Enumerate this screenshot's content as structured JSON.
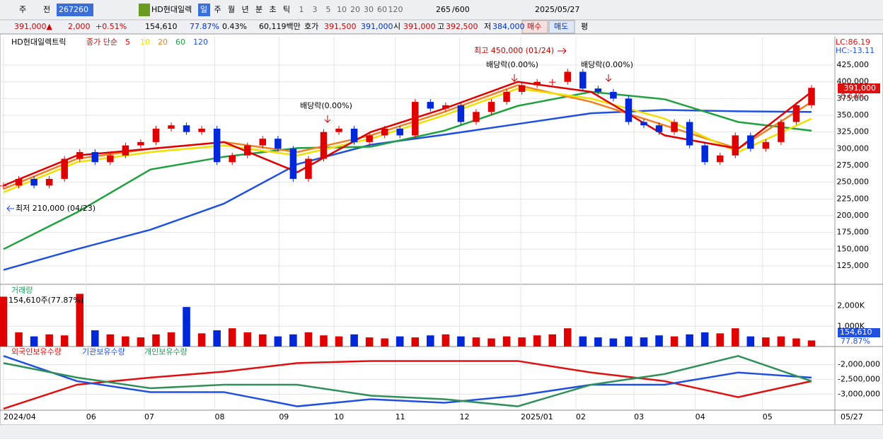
{
  "toolbar": {
    "period": "주",
    "prev": "전",
    "code": "267260",
    "name": "HD현대일렉",
    "intervals": [
      "일",
      "주",
      "월",
      "년",
      "분",
      "초",
      "틱"
    ],
    "counts": [
      "1",
      "3",
      "5",
      "10",
      "20",
      "30",
      "60",
      "120"
    ],
    "bars": "265",
    "max": "/600",
    "date": "2025/05/27"
  },
  "quote": [
    {
      "text": "391,000▲",
      "color": "#d00000"
    },
    {
      "text": "2,000",
      "color": "#d00000"
    },
    {
      "text": "+0.51%",
      "color": "#d00000"
    },
    {
      "text": "154,610",
      "color": "#000000"
    },
    {
      "text": "77.87%",
      "color": "#0030c0"
    },
    {
      "text": "0.43%",
      "color": "#000000"
    },
    {
      "text": "60,119백만",
      "color": "#000000"
    },
    {
      "text": "호가",
      "color": "#000000"
    },
    {
      "text": "391,500",
      "color": "#d00000"
    },
    {
      "text": "391,000",
      "color": "#0030c0"
    },
    {
      "text": "시",
      "color": "#000000"
    },
    {
      "text": "391,000",
      "color": "#d00000"
    },
    {
      "text": "고",
      "color": "#000000"
    },
    {
      "text": "392,500",
      "color": "#d00000"
    },
    {
      "text": "저",
      "color": "#000000"
    },
    {
      "text": "384,000",
      "color": "#0030c0"
    },
    {
      "text": "매수",
      "color": "#d00000"
    },
    {
      "text": "매도",
      "color": "#0030c0"
    },
    {
      "text": "평",
      "color": "#000000"
    }
  ],
  "chart_data": [
    {
      "type": "candlestick",
      "title": "HD현대일렉트릭",
      "legend": "종가 단순",
      "color_up": "#e00000",
      "color_down": "#0028d8",
      "values": [
        245000,
        255000,
        245000,
        255000,
        285000,
        295000,
        280000,
        290000,
        305000,
        310000,
        330000,
        335000,
        325000,
        330000,
        280000,
        290000,
        305000,
        315000,
        300000,
        255000,
        285000,
        325000,
        330000,
        310000,
        320000,
        330000,
        320000,
        370000,
        360000,
        365000,
        340000,
        355000,
        370000,
        385000,
        395000,
        400000,
        400000,
        415000,
        390000,
        385000,
        375000,
        340000,
        335000,
        325000,
        340000,
        305000,
        280000,
        290000,
        320000,
        300000,
        310000,
        340000,
        365000,
        391000
      ],
      "series": [
        {
          "name": "5",
          "color": "#e00000",
          "values": [
            245000,
            290000,
            300000,
            310000,
            265000,
            325000,
            360000,
            400000,
            385000,
            320000,
            300000,
            385000
          ]
        },
        {
          "name": "10",
          "color": "#f0e000",
          "values": [
            235000,
            280000,
            295000,
            305000,
            290000,
            315000,
            350000,
            390000,
            375000,
            345000,
            295000,
            345000
          ]
        },
        {
          "name": "20",
          "color": "#f08020",
          "values": [
            240000,
            285000,
            300000,
            310000,
            295000,
            320000,
            355000,
            395000,
            370000,
            335000,
            300000,
            370000
          ]
        },
        {
          "name": "60",
          "color": "#20a040",
          "values": [
            150000,
            205000,
            269000,
            288000,
            301000,
            303000,
            327000,
            364000,
            385000,
            374000,
            340000,
            327000
          ]
        },
        {
          "name": "120",
          "color": "#2050e0",
          "values": [
            119000,
            150000,
            179000,
            218000,
            277000,
            306000,
            321000,
            337000,
            353000,
            358000,
            356000,
            355000
          ]
        }
      ],
      "ylim": [
        97500,
        467300
      ],
      "yticks": [
        {
          "value": 125000,
          "label": "125,000"
        },
        {
          "value": 150000,
          "label": "150,000"
        },
        {
          "value": 175000,
          "label": "175,000"
        },
        {
          "value": 200000,
          "label": "200,000"
        },
        {
          "value": 225000,
          "label": "225,000"
        },
        {
          "value": 250000,
          "label": "250,000"
        },
        {
          "value": 275000,
          "label": "275,000"
        },
        {
          "value": 300000,
          "label": "300,000"
        },
        {
          "value": 325000,
          "label": "325,000"
        },
        {
          "value": 350000,
          "label": "350,000"
        },
        {
          "value": 375000,
          "label": "375,000"
        },
        {
          "value": 400000,
          "label": "400,000"
        },
        {
          "value": 425000,
          "label": "425,000"
        }
      ],
      "xlim": [
        0,
        264
      ],
      "xticks": [
        {
          "value": 0,
          "label": "2024/04"
        },
        {
          "value": 27,
          "label": "06"
        },
        {
          "value": 46,
          "label": "07"
        },
        {
          "value": 69,
          "label": "08"
        },
        {
          "value": 90,
          "label": "09"
        },
        {
          "value": 108,
          "label": "10"
        },
        {
          "value": 128,
          "label": "11"
        },
        {
          "value": 149,
          "label": "12"
        },
        {
          "value": 169,
          "label": "2025/01"
        },
        {
          "value": 187,
          "label": "02"
        },
        {
          "value": 206,
          "label": "03"
        },
        {
          "value": 226,
          "label": "04"
        },
        {
          "value": 248,
          "label": "05"
        }
      ],
      "x_end_label": "05/27",
      "annotations": [
        "최고 450,000 (01/24)",
        "최저 210,000 (04/23)",
        "배당락(0.00%)",
        "배당락(0.00%)",
        "배당락(0.00%)"
      ],
      "last_price_label": "391,000",
      "last_change_label": "0.64%",
      "lc": "LC:86.19",
      "hc": "HC:-13.11",
      "grid": true
    },
    {
      "type": "bar",
      "title": "거래량",
      "subtitle": "154,610주(77.87%)",
      "values": [
        2460,
        700,
        500,
        600,
        550,
        2600,
        800,
        600,
        500,
        450,
        600,
        700,
        1950,
        650,
        800,
        900,
        700,
        600,
        500,
        600,
        700,
        550,
        500,
        600,
        450,
        400,
        500,
        450,
        550,
        600,
        500,
        450,
        400,
        500,
        450,
        550,
        600,
        900,
        500,
        450,
        400,
        500,
        450,
        550,
        500,
        600,
        700,
        650,
        900,
        500,
        450,
        500,
        400,
        300
      ],
      "ylim": [
        0,
        3000
      ],
      "yticks": [
        {
          "value": 1000,
          "label": "1,000K"
        },
        {
          "value": 2000,
          "label": "2,000K"
        }
      ],
      "current_label": "154,610",
      "ratio_label": "77.87%"
    },
    {
      "type": "line",
      "series": [
        {
          "name": "외국인보유수량",
          "color": "#e01010",
          "values": [
            -3490000,
            -2680000,
            -2440000,
            -2240000,
            -1950000,
            -1880000,
            -1880000,
            -1880000,
            -2270000,
            -2560000,
            -3100000,
            -2560000
          ]
        },
        {
          "name": "기관보유수량",
          "color": "#2050e0",
          "values": [
            -1710000,
            -2560000,
            -2930000,
            -2930000,
            -3410000,
            -3170000,
            -3290000,
            -3050000,
            -2680000,
            -2680000,
            -2270000,
            -2440000
          ]
        },
        {
          "name": "개인보유수량",
          "color": "#30905a",
          "values": [
            -1950000,
            -2440000,
            -2800000,
            -2680000,
            -2680000,
            -3050000,
            -3170000,
            -3410000,
            -2680000,
            -2320000,
            -1710000,
            -2560000
          ]
        }
      ],
      "ylim": [
        -3540000,
        -1440000
      ],
      "yticks": [
        {
          "value": -2000000,
          "label": "-2,000,000"
        },
        {
          "value": -2500000,
          "label": "-2,500,000"
        },
        {
          "value": -3000000,
          "label": "-3,000,000"
        }
      ]
    }
  ]
}
